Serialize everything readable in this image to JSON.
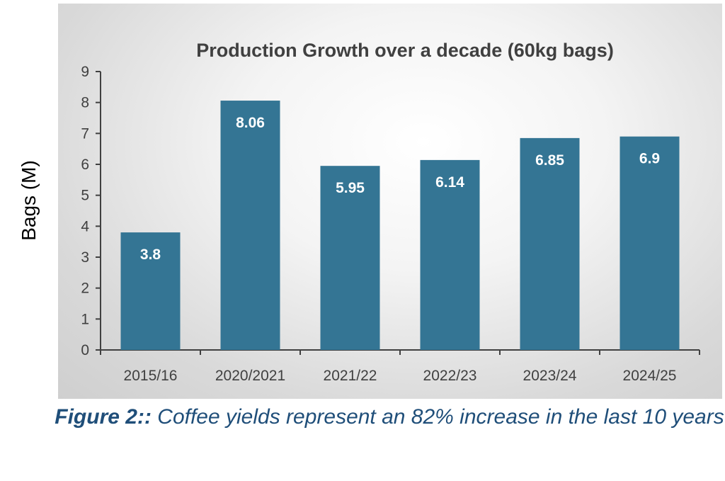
{
  "chart_data": {
    "type": "bar",
    "title": "Production Growth over a decade (60kg bags)",
    "xlabel": "",
    "ylabel": "Bags (M)",
    "categories": [
      "2015/16",
      "2020/2021",
      "2021/22",
      "2022/23",
      "2023/24",
      "2024/25"
    ],
    "values": [
      3.8,
      8.06,
      5.95,
      6.14,
      6.85,
      6.9
    ],
    "value_labels": [
      "3.8",
      "8.06",
      "5.95",
      "6.14",
      "6.85",
      "6.9"
    ],
    "ylim": [
      0,
      9
    ],
    "yticks": [
      0,
      1,
      2,
      3,
      4,
      5,
      6,
      7,
      8,
      9
    ],
    "grid": false,
    "bar_color": "#347594",
    "label_color": "#ffffff"
  },
  "caption": {
    "prefix": "Figure 2::",
    "text": " Coffee yields represent an 82% increase in the last 10 years"
  }
}
